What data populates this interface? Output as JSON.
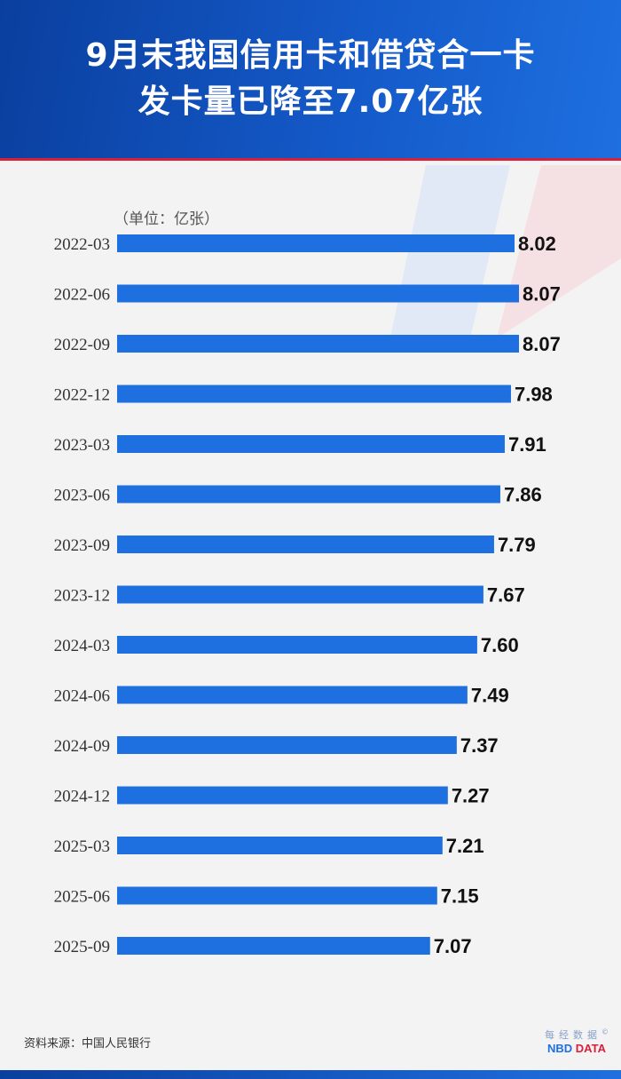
{
  "header": {
    "title_line1": "9月末我国信用卡和借贷合一卡",
    "title_line2": "发卡量已降至7.07亿张"
  },
  "unit_label": "（单位：亿张）",
  "source": "资料来源：中国人民银行",
  "brand": {
    "cn": "每经数据",
    "mark": "©",
    "en_prefix": "NBD",
    "en_suffix": "DATA"
  },
  "colors": {
    "bar": "#1e6fe0",
    "header": "#1459c8",
    "accent": "#d9203a"
  },
  "chart_data": {
    "type": "bar",
    "orientation": "horizontal",
    "categories": [
      "2022-03",
      "2022-06",
      "2022-09",
      "2022-12",
      "2023-03",
      "2023-06",
      "2023-09",
      "2023-12",
      "2024-03",
      "2024-06",
      "2024-09",
      "2024-12",
      "2025-03",
      "2025-06",
      "2025-09"
    ],
    "values": [
      8.02,
      8.07,
      8.07,
      7.98,
      7.91,
      7.86,
      7.79,
      7.67,
      7.6,
      7.49,
      7.37,
      7.27,
      7.21,
      7.15,
      7.07
    ],
    "value_labels": [
      "8.02",
      "8.07",
      "8.07",
      "7.98",
      "7.91",
      "7.86",
      "7.79",
      "7.67",
      "7.60",
      "7.49",
      "7.37",
      "7.27",
      "7.21",
      "7.15",
      "7.07"
    ],
    "xlim": [
      3.55,
      8.07
    ],
    "grid": false,
    "legend": "none"
  }
}
